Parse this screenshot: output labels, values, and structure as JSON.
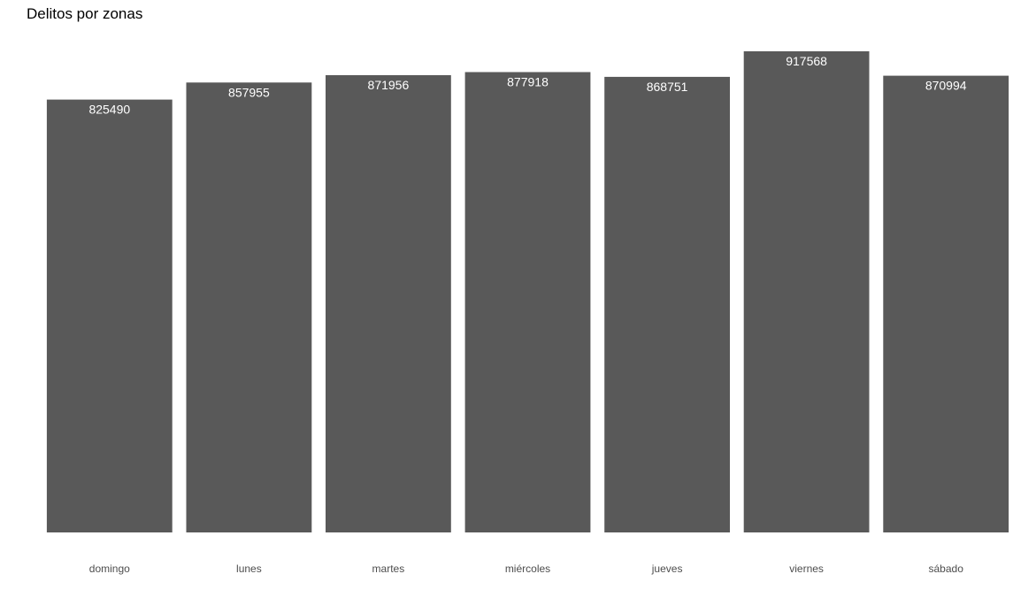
{
  "chart_data": {
    "type": "bar",
    "title": "Delitos por zonas",
    "xlabel": "",
    "ylabel": "",
    "categories": [
      "domingo",
      "lunes",
      "martes",
      "miércoles",
      "jueves",
      "viernes",
      "sábado"
    ],
    "values": [
      825490,
      857955,
      871956,
      877918,
      868751,
      917568,
      870994
    ],
    "ylim": [
      0,
      917568
    ],
    "grid": false,
    "show_y_axis": false,
    "data_labels": true,
    "colors": {
      "bar": "#595959",
      "bar_label": "#ffffff",
      "tick_label": "#4d4d4d",
      "title": "#000000"
    }
  }
}
